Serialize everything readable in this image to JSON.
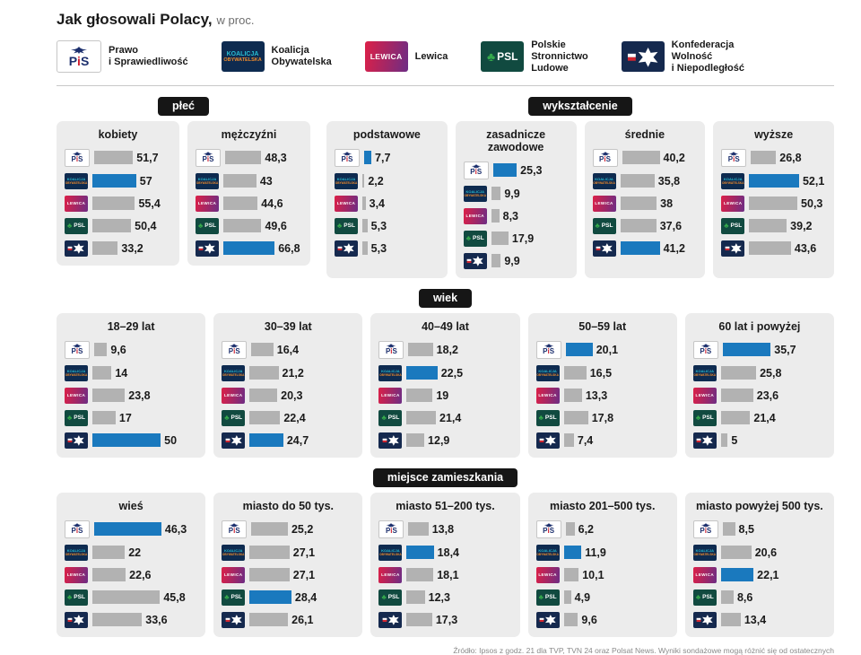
{
  "title": {
    "main": "Jak głosowali Polacy,",
    "suffix": "w proc."
  },
  "colors": {
    "bar": "#b2b2b2",
    "highlight": "#1a79be",
    "panel_bg": "#ececec",
    "badge_bg": "#161616",
    "badge_text": "#ffffff"
  },
  "parties": {
    "pis": {
      "name": "Prawo i Sprawiedliwość",
      "logo_text": "PiS",
      "icon": "pis-eagle"
    },
    "ko": {
      "name": "Koalicja Obywatelska",
      "logo_lines": [
        "KOALICJA",
        "OBYWATELSKA"
      ]
    },
    "lewica": {
      "name": "Lewica",
      "logo_text": "LEWICA"
    },
    "psl": {
      "name": "Polskie Stronnictwo Ludowe",
      "logo_text": "PSL",
      "icon": "clover"
    },
    "konf": {
      "name": "Konfederacja Wolność i Niepodległość",
      "icon": "eagle-and-flag"
    }
  },
  "legend": [
    {
      "party": "pis",
      "lines": [
        "Prawo",
        "i Sprawiedliwość"
      ]
    },
    {
      "party": "ko",
      "lines": [
        "Koalicja",
        "Obywatelska"
      ]
    },
    {
      "party": "lewica",
      "lines": [
        "Lewica"
      ]
    },
    {
      "party": "psl",
      "lines": [
        "Polskie",
        "Stronnictwo",
        "Ludowe"
      ]
    },
    {
      "party": "konf",
      "lines": [
        "Konfederacja",
        "Wolność",
        "i Niepodległość"
      ]
    }
  ],
  "chart_data": {
    "type": "bar",
    "title": "Jak głosowali Polacy, w proc.",
    "unit": "proc.",
    "party_order": [
      "pis",
      "ko",
      "lewica",
      "psl",
      "konf"
    ],
    "highlight_rule": "najwyższa wartość w każdym panelu wyróżniona na niebiesko",
    "bands": [
      [
        {
          "label": "płeć",
          "panels": [
            {
              "label": "kobiety",
              "values": [
                51.7,
                57,
                55.4,
                50.4,
                33.2
              ]
            },
            {
              "label": "mężczyźni",
              "values": [
                48.3,
                43,
                44.6,
                49.6,
                66.8
              ]
            }
          ]
        },
        {
          "label": "wykształcenie",
          "panels": [
            {
              "label": "podstawowe",
              "values": [
                7.7,
                2.2,
                3.4,
                5.3,
                5.3
              ]
            },
            {
              "label": "zasadnicze zawodowe",
              "values": [
                25.3,
                9.9,
                8.3,
                17.9,
                9.9
              ]
            },
            {
              "label": "średnie",
              "values": [
                40.2,
                35.8,
                38,
                37.6,
                41.2
              ]
            },
            {
              "label": "wyższe",
              "values": [
                26.8,
                52.1,
                50.3,
                39.2,
                43.6
              ]
            }
          ]
        }
      ],
      [
        {
          "label": "wiek",
          "panels": [
            {
              "label": "18–29 lat",
              "values": [
                9.6,
                14,
                23.8,
                17,
                50
              ]
            },
            {
              "label": "30–39 lat",
              "values": [
                16.4,
                21.2,
                20.3,
                22.4,
                24.7
              ]
            },
            {
              "label": "40–49 lat",
              "values": [
                18.2,
                22.5,
                19,
                21.4,
                12.9
              ]
            },
            {
              "label": "50–59 lat",
              "values": [
                20.1,
                16.5,
                13.3,
                17.8,
                7.4
              ]
            },
            {
              "label": "60 lat i powyżej",
              "values": [
                35.7,
                25.8,
                23.6,
                21.4,
                5
              ]
            }
          ]
        }
      ],
      [
        {
          "label": "miejsce zamieszkania",
          "panels": [
            {
              "label": "wieś",
              "values": [
                46.3,
                22,
                22.6,
                45.8,
                33.6
              ]
            },
            {
              "label": "miasto do 50 tys.",
              "values": [
                25.2,
                27.1,
                27.1,
                28.4,
                26.1
              ]
            },
            {
              "label": "miasto 51–200 tys.",
              "values": [
                13.8,
                18.4,
                18.1,
                12.3,
                17.3
              ]
            },
            {
              "label": "miasto 201–500 tys.",
              "values": [
                6.2,
                11.9,
                10.1,
                4.9,
                9.6
              ]
            },
            {
              "label": "miasto powyżej 500 tys.",
              "values": [
                8.5,
                20.6,
                22.1,
                8.6,
                13.4
              ]
            }
          ]
        }
      ]
    ]
  },
  "source": "Źródło: Ipsos z godz. 21 dla TVP, TVN 24 oraz Polsat News. Wyniki sondażowe mogą różnić się od ostatecznych"
}
